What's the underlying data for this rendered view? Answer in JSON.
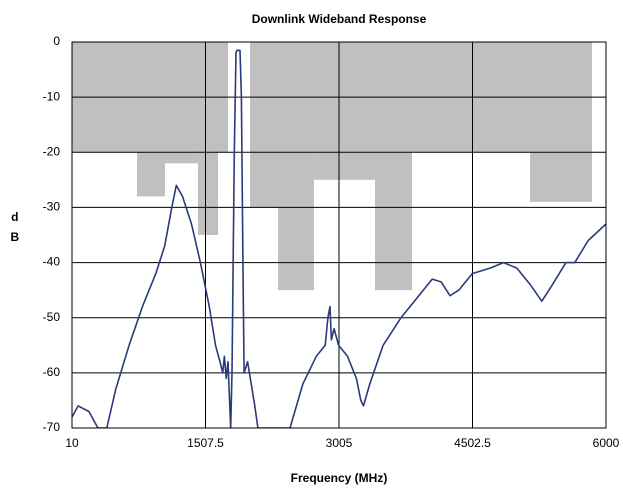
{
  "chart_data": {
    "type": "line",
    "title": "Downlink Wideband Response",
    "xlabel": "Frequency (MHz)",
    "ylabel": "dB",
    "xlim": [
      10,
      6000
    ],
    "ylim": [
      -70,
      0
    ],
    "xticks": [
      10,
      1507.5,
      3005,
      4502.5,
      6000
    ],
    "yticks": [
      0,
      -10,
      -20,
      -30,
      -40,
      -50,
      -60,
      -70
    ],
    "grid": true,
    "mask": {
      "color": "#c0c0c0",
      "x_start": [
        10,
        739,
        1053,
        1423,
        1648,
        2007,
        2321,
        2724,
        3409,
        3824,
        5148
      ],
      "x_end": [
        739,
        1053,
        1423,
        1648,
        1760,
        2321,
        2724,
        3409,
        3824,
        5148,
        5843
      ],
      "values": [
        -20,
        -28,
        -22,
        -35,
        -20,
        -30,
        -45,
        -25,
        -45,
        -20,
        -29
      ]
    },
    "series": [
      {
        "color": "#2b3a7a",
        "x": [
          10,
          80,
          200,
          300,
          400,
          500,
          650,
          800,
          950,
          1050,
          1130,
          1180,
          1250,
          1350,
          1450,
          1550,
          1620,
          1670,
          1700,
          1720,
          1740,
          1760,
          1790,
          1805,
          1830,
          1850,
          1860,
          1895,
          1910,
          1930,
          1940,
          1980,
          2020,
          2060,
          2095,
          2455,
          2600,
          2750,
          2850,
          2880,
          2904,
          2920,
          2950,
          3000,
          3100,
          3200,
          3250,
          3280,
          3350,
          3500,
          3700,
          3900,
          4050,
          4150,
          4250,
          4350,
          4500,
          4700,
          4850,
          5000,
          5150,
          5280,
          5400,
          5550,
          5650,
          5800,
          6000
        ],
        "values": [
          -68,
          -66,
          -67,
          -70,
          -70,
          -63,
          -55,
          -48,
          -42,
          -37,
          -30,
          -26,
          -28,
          -33,
          -40,
          -48,
          -55,
          -58,
          -60,
          -57,
          -61,
          -58,
          -70,
          -60,
          -20,
          -2,
          -1.5,
          -1.5,
          -10,
          -45,
          -60,
          -58,
          -62,
          -66,
          -70,
          -70,
          -62,
          -57,
          -55,
          -50,
          -48,
          -54,
          -52,
          -55,
          -57,
          -61,
          -65,
          -66,
          -62,
          -55,
          -50,
          -46,
          -43,
          -43.5,
          -46,
          -45,
          -42,
          -41,
          -40,
          -41,
          -44,
          -47,
          -44,
          -40,
          -40,
          -36,
          -33
        ]
      }
    ]
  }
}
